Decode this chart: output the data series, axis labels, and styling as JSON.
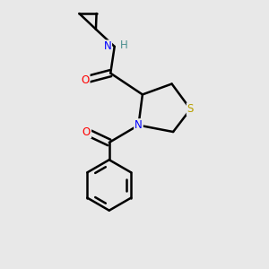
{
  "background_color": "#e8e8e8",
  "atom_colors": {
    "N": "#0000ff",
    "O": "#ff0000",
    "S": "#b8a000",
    "H": "#4a9090",
    "C": "#000000"
  },
  "bond_color": "#000000",
  "bond_width": 1.8,
  "figsize": [
    3.0,
    3.0
  ],
  "dpi": 100
}
